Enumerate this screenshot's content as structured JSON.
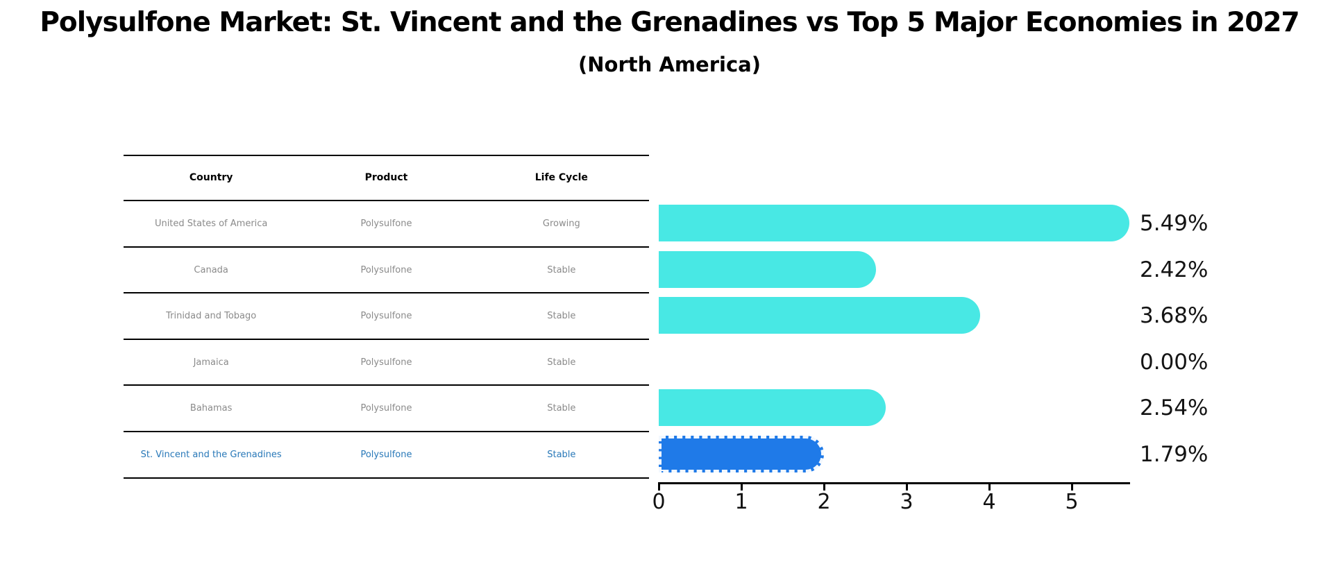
{
  "title": "Polysulfone Market: St. Vincent and the Grenadines vs Top 5 Major Economies in 2027",
  "subtitle": "(North America)",
  "colors": {
    "bar": "#48e8e4",
    "highlight_bar": "#1f7ae8",
    "highlight_text": "#2878b8",
    "cell_text": "#8a8a8a",
    "header_text": "#000000",
    "axis": "#000000"
  },
  "table": {
    "headers": [
      "Country",
      "Product",
      "Life Cycle"
    ],
    "rows": [
      {
        "country": "United States of America",
        "product": "Polysulfone",
        "life_cycle": "Growing",
        "highlight": false
      },
      {
        "country": "Canada",
        "product": "Polysulfone",
        "life_cycle": "Stable",
        "highlight": false
      },
      {
        "country": "Trinidad and Tobago",
        "product": "Polysulfone",
        "life_cycle": "Stable",
        "highlight": false
      },
      {
        "country": "Jamaica",
        "product": "Polysulfone",
        "life_cycle": "Stable",
        "highlight": false
      },
      {
        "country": "Bahamas",
        "product": "Polysulfone",
        "life_cycle": "Stable",
        "highlight": false
      },
      {
        "country": "St. Vincent and the Grenadines",
        "product": "Polysulfone",
        "life_cycle": "Stable",
        "highlight": true
      }
    ]
  },
  "chart_data": {
    "type": "bar",
    "orientation": "horizontal",
    "title": "Polysulfone Market: St. Vincent and the Grenadines vs Top 5 Major Economies in 2027 (North America)",
    "categories": [
      "United States of America",
      "Canada",
      "Trinidad and Tobago",
      "Jamaica",
      "Bahamas",
      "St. Vincent and the Grenadines"
    ],
    "values": [
      5.49,
      2.42,
      3.68,
      0.0,
      2.54,
      1.79
    ],
    "value_labels": [
      "5.49%",
      "2.42%",
      "3.68%",
      "0.00%",
      "2.54%",
      "1.79%"
    ],
    "highlight_index": 5,
    "x_ticks": [
      "0",
      "1",
      "2",
      "3",
      "4",
      "5"
    ],
    "xlim": [
      0,
      5.7
    ],
    "grid": false,
    "legend": false
  }
}
